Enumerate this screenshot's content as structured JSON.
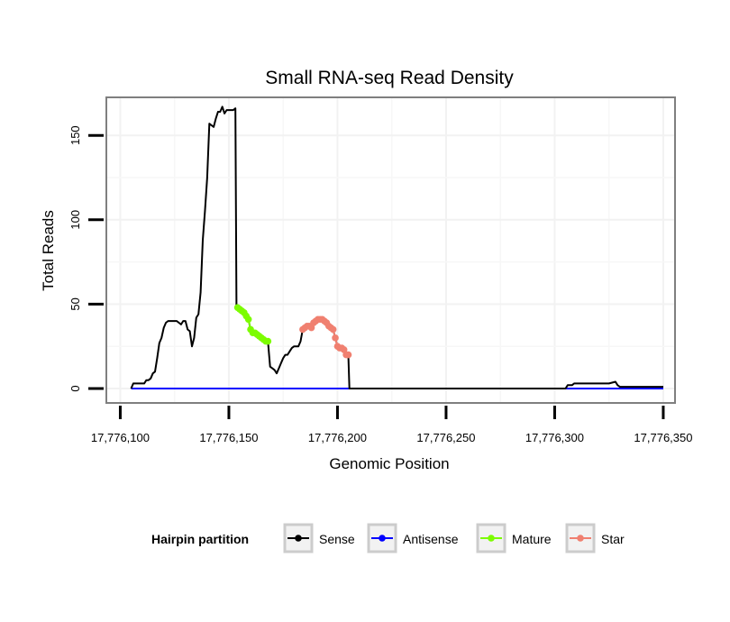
{
  "chart_data": {
    "type": "line",
    "title": "Small RNA-seq Read Density",
    "xlabel": "Genomic Position",
    "ylabel": "Total Reads",
    "xlim": [
      17776094,
      17776355
    ],
    "ylim": [
      -8,
      172
    ],
    "x_ticks": [
      17776100,
      17776150,
      17776200,
      17776250,
      17776300,
      17776350
    ],
    "x_tick_labels": [
      "17,776,100",
      "17,776,150",
      "17,776,200",
      "17,776,250",
      "17,776,300",
      "17,776,350"
    ],
    "y_ticks": [
      0,
      50,
      100,
      150
    ],
    "y_tick_labels": [
      "0",
      "50",
      "100",
      "150"
    ],
    "grid": true,
    "legend": {
      "title": "Hairpin partition",
      "placement": "bottom",
      "entries": [
        "Sense",
        "Antisense",
        "Mature",
        "Star"
      ]
    },
    "series": [
      {
        "name": "Sense",
        "color": "#000000",
        "markers": false,
        "points": [
          [
            17776105,
            0
          ],
          [
            17776106,
            3
          ],
          [
            17776107,
            3
          ],
          [
            17776108,
            3
          ],
          [
            17776109,
            3
          ],
          [
            17776110,
            3
          ],
          [
            17776111,
            3
          ],
          [
            17776112,
            5
          ],
          [
            17776113,
            5
          ],
          [
            17776114,
            6
          ],
          [
            17776115,
            9
          ],
          [
            17776116,
            10
          ],
          [
            17776117,
            18
          ],
          [
            17776118,
            27
          ],
          [
            17776119,
            30
          ],
          [
            17776120,
            36
          ],
          [
            17776121,
            39
          ],
          [
            17776122,
            40
          ],
          [
            17776123,
            40
          ],
          [
            17776124,
            40
          ],
          [
            17776125,
            40
          ],
          [
            17776126,
            40
          ],
          [
            17776127,
            39
          ],
          [
            17776128,
            38
          ],
          [
            17776129,
            40
          ],
          [
            17776130,
            40
          ],
          [
            17776131,
            35
          ],
          [
            17776132,
            34
          ],
          [
            17776133,
            25
          ],
          [
            17776134,
            30
          ],
          [
            17776135,
            42
          ],
          [
            17776136,
            44
          ],
          [
            17776137,
            57
          ],
          [
            17776138,
            88
          ],
          [
            17776139,
            105
          ],
          [
            17776140,
            125
          ],
          [
            17776141,
            157
          ],
          [
            17776142,
            156
          ],
          [
            17776143,
            155
          ],
          [
            17776144,
            160
          ],
          [
            17776145,
            164
          ],
          [
            17776146,
            164
          ],
          [
            17776147,
            167
          ],
          [
            17776148,
            163
          ],
          [
            17776149,
            165
          ],
          [
            17776150,
            165
          ],
          [
            17776151,
            165
          ],
          [
            17776152,
            165
          ],
          [
            17776153,
            166
          ],
          [
            17776153.5,
            48
          ],
          [
            17776154,
            48
          ],
          [
            17776155,
            47
          ],
          [
            17776156,
            46
          ],
          [
            17776157,
            45
          ],
          [
            17776158,
            43
          ],
          [
            17776159,
            41
          ],
          [
            17776160,
            35
          ],
          [
            17776161,
            33
          ],
          [
            17776162,
            33
          ],
          [
            17776163,
            32
          ],
          [
            17776164,
            31
          ],
          [
            17776165,
            30
          ],
          [
            17776166,
            29
          ],
          [
            17776167,
            28
          ],
          [
            17776168,
            28
          ],
          [
            17776169,
            13
          ],
          [
            17776170,
            12
          ],
          [
            17776171,
            11
          ],
          [
            17776172,
            9
          ],
          [
            17776173,
            12
          ],
          [
            17776174,
            15
          ],
          [
            17776175,
            18
          ],
          [
            17776176,
            20
          ],
          [
            17776177,
            20
          ],
          [
            17776178,
            22
          ],
          [
            17776179,
            24
          ],
          [
            17776180,
            25
          ],
          [
            17776181,
            25
          ],
          [
            17776182,
            25
          ],
          [
            17776183,
            28
          ],
          [
            17776184,
            35
          ],
          [
            17776185,
            36
          ],
          [
            17776186,
            37
          ],
          [
            17776187,
            37
          ],
          [
            17776188,
            36
          ],
          [
            17776189,
            39
          ],
          [
            17776190,
            40
          ],
          [
            17776191,
            41
          ],
          [
            17776192,
            41
          ],
          [
            17776193,
            41
          ],
          [
            17776194,
            40
          ],
          [
            17776195,
            39
          ],
          [
            17776196,
            37
          ],
          [
            17776197,
            36
          ],
          [
            17776198,
            35
          ],
          [
            17776199,
            30
          ],
          [
            17776200,
            25
          ],
          [
            17776201,
            24
          ],
          [
            17776202,
            24
          ],
          [
            17776203,
            23
          ],
          [
            17776204,
            20
          ],
          [
            17776205,
            20
          ],
          [
            17776205.5,
            0
          ],
          [
            17776305,
            0
          ],
          [
            17776306,
            2
          ],
          [
            17776307,
            2
          ],
          [
            17776308,
            2
          ],
          [
            17776309,
            3
          ],
          [
            17776310,
            3
          ],
          [
            17776315,
            3
          ],
          [
            17776320,
            3
          ],
          [
            17776325,
            3
          ],
          [
            17776328,
            4
          ],
          [
            17776329,
            2
          ],
          [
            17776330,
            1
          ],
          [
            17776335,
            1
          ],
          [
            17776340,
            1
          ],
          [
            17776345,
            1
          ],
          [
            17776350,
            1
          ]
        ]
      },
      {
        "name": "Antisense",
        "color": "#0000ff",
        "markers": false,
        "points": [
          [
            17776105,
            0
          ],
          [
            17776350,
            0
          ]
        ]
      },
      {
        "name": "Mature",
        "color": "#7cfc00",
        "markers": true,
        "points": [
          [
            17776154,
            48
          ],
          [
            17776155,
            47
          ],
          [
            17776156,
            46
          ],
          [
            17776157,
            45
          ],
          [
            17776158,
            43
          ],
          [
            17776159,
            41
          ],
          [
            17776160,
            35
          ],
          [
            17776161,
            33
          ],
          [
            17776162,
            33
          ],
          [
            17776163,
            32
          ],
          [
            17776164,
            31
          ],
          [
            17776165,
            30
          ],
          [
            17776166,
            29
          ],
          [
            17776167,
            28
          ],
          [
            17776168,
            28
          ]
        ]
      },
      {
        "name": "Star",
        "color": "#f08070",
        "markers": true,
        "points": [
          [
            17776184,
            35
          ],
          [
            17776185,
            36
          ],
          [
            17776186,
            37
          ],
          [
            17776187,
            37
          ],
          [
            17776188,
            36
          ],
          [
            17776189,
            39
          ],
          [
            17776190,
            40
          ],
          [
            17776191,
            41
          ],
          [
            17776192,
            41
          ],
          [
            17776193,
            41
          ],
          [
            17776194,
            40
          ],
          [
            17776195,
            39
          ],
          [
            17776196,
            37
          ],
          [
            17776197,
            36
          ],
          [
            17776198,
            35
          ],
          [
            17776199,
            30
          ],
          [
            17776200,
            25
          ],
          [
            17776201,
            24
          ],
          [
            17776202,
            24
          ],
          [
            17776203,
            23
          ],
          [
            17776204,
            20
          ],
          [
            17776205,
            20
          ]
        ]
      }
    ]
  }
}
